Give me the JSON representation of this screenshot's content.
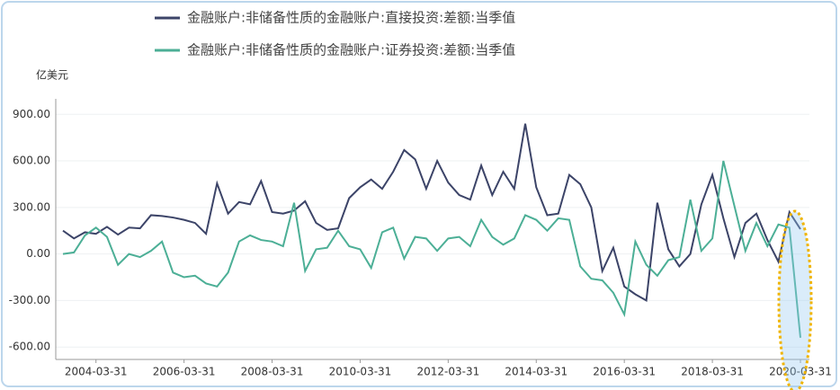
{
  "chart_data": {
    "type": "line",
    "y_label": "亿美元",
    "categories": [
      null,
      null,
      null,
      "2004-03-31",
      null,
      null,
      null,
      null,
      null,
      null,
      null,
      "2006-03-31",
      null,
      null,
      null,
      null,
      null,
      null,
      null,
      "2008-03-31",
      null,
      null,
      null,
      null,
      null,
      null,
      null,
      "2010-03-31",
      null,
      null,
      null,
      null,
      null,
      null,
      null,
      "2012-03-31",
      null,
      null,
      null,
      null,
      null,
      null,
      null,
      "2014-03-31",
      null,
      null,
      null,
      null,
      null,
      null,
      null,
      "2016-03-31",
      null,
      null,
      null,
      null,
      null,
      null,
      null,
      "2018-03-31",
      null,
      null,
      null,
      null,
      null,
      null,
      null,
      "2020-03-31"
    ],
    "series": [
      {
        "name": "金融账户:非储备性质的金融账户:直接投资:差额:当季值",
        "color": "#3c4468",
        "values": [
          150,
          100,
          140,
          130,
          175,
          125,
          170,
          165,
          250,
          245,
          235,
          220,
          200,
          130,
          455,
          260,
          335,
          320,
          470,
          270,
          260,
          280,
          340,
          200,
          155,
          165,
          360,
          430,
          480,
          420,
          530,
          670,
          610,
          420,
          600,
          460,
          380,
          350,
          570,
          380,
          530,
          420,
          840,
          430,
          250,
          260,
          510,
          450,
          300,
          -110,
          40,
          -210,
          -260,
          -300,
          330,
          30,
          -80,
          0,
          320,
          510,
          230,
          -20,
          200,
          260,
          90,
          -50,
          270,
          160
        ]
      },
      {
        "name": "金融账户:非储备性质的金融账户:证券投资:差额:当季值",
        "color": "#4caf96",
        "values": [
          0,
          10,
          120,
          170,
          110,
          -70,
          0,
          -20,
          20,
          80,
          -120,
          -150,
          -140,
          -190,
          -210,
          -120,
          80,
          120,
          90,
          80,
          50,
          330,
          -110,
          30,
          40,
          150,
          50,
          30,
          -90,
          140,
          170,
          -30,
          110,
          100,
          20,
          100,
          110,
          50,
          220,
          110,
          60,
          100,
          250,
          220,
          150,
          230,
          220,
          -80,
          -160,
          -170,
          -250,
          -390,
          80,
          -70,
          -140,
          -40,
          -20,
          350,
          20,
          100,
          600,
          310,
          20,
          200,
          50,
          190,
          170,
          -540
        ]
      }
    ],
    "ylim": [
      -680,
      1000
    ],
    "yticks": [
      {
        "value": -600,
        "label": "-600.00"
      },
      {
        "value": -300,
        "label": "-300.00"
      },
      {
        "value": 0,
        "label": "0.00"
      },
      {
        "value": 300,
        "label": "300.00"
      },
      {
        "value": 600,
        "label": "600.00"
      },
      {
        "value": 900,
        "label": "900.00"
      }
    ],
    "grid": true
  }
}
